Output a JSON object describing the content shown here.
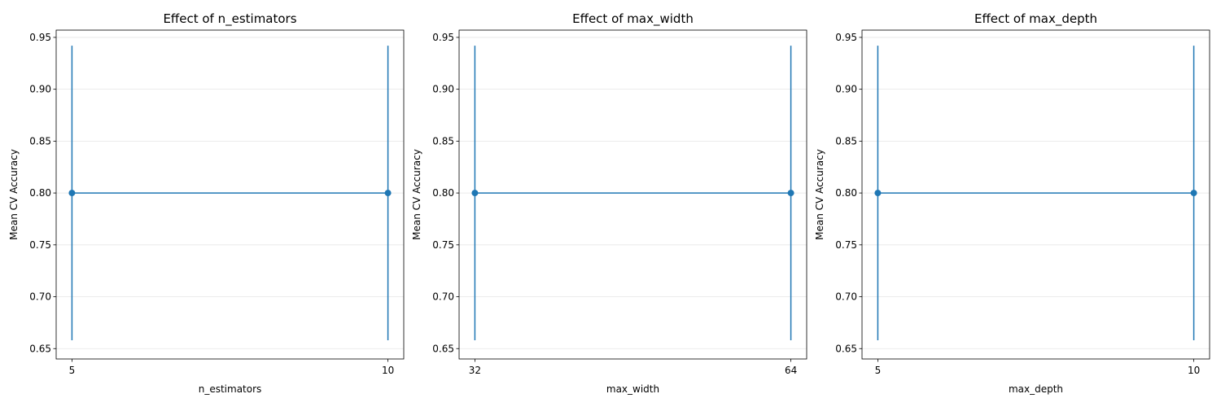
{
  "colors": {
    "series": "#1f77b4",
    "grid": "#e6e6e6",
    "axes": "#000000"
  },
  "chart_data": [
    {
      "type": "line",
      "title": "Effect of n_estimators",
      "xlabel": "n_estimators",
      "ylabel": "Mean CV Accuracy",
      "x": [
        5,
        10
      ],
      "x_tick_labels": [
        "5",
        "10"
      ],
      "y": [
        0.8,
        0.8
      ],
      "error": [
        0.142,
        0.142
      ],
      "ylim": [
        0.64,
        0.957
      ],
      "y_ticks": [
        0.65,
        0.7,
        0.75,
        0.8,
        0.85,
        0.9,
        0.95
      ],
      "y_tick_labels": [
        "0.65",
        "0.70",
        "0.75",
        "0.80",
        "0.85",
        "0.90",
        "0.95"
      ],
      "marker": "circle",
      "grid": true
    },
    {
      "type": "line",
      "title": "Effect of max_width",
      "xlabel": "max_width",
      "ylabel": "Mean CV Accuracy",
      "x": [
        32,
        64
      ],
      "x_tick_labels": [
        "32",
        "64"
      ],
      "y": [
        0.8,
        0.8
      ],
      "error": [
        0.142,
        0.142
      ],
      "ylim": [
        0.64,
        0.957
      ],
      "y_ticks": [
        0.65,
        0.7,
        0.75,
        0.8,
        0.85,
        0.9,
        0.95
      ],
      "y_tick_labels": [
        "0.65",
        "0.70",
        "0.75",
        "0.80",
        "0.85",
        "0.90",
        "0.95"
      ],
      "marker": "circle",
      "grid": true
    },
    {
      "type": "line",
      "title": "Effect of max_depth",
      "xlabel": "max_depth",
      "ylabel": "Mean CV Accuracy",
      "x": [
        5,
        10
      ],
      "x_tick_labels": [
        "5",
        "10"
      ],
      "y": [
        0.8,
        0.8
      ],
      "error": [
        0.142,
        0.142
      ],
      "ylim": [
        0.64,
        0.957
      ],
      "y_ticks": [
        0.65,
        0.7,
        0.75,
        0.8,
        0.85,
        0.9,
        0.95
      ],
      "y_tick_labels": [
        "0.65",
        "0.70",
        "0.75",
        "0.80",
        "0.85",
        "0.90",
        "0.95"
      ],
      "marker": "circle",
      "grid": true
    }
  ]
}
